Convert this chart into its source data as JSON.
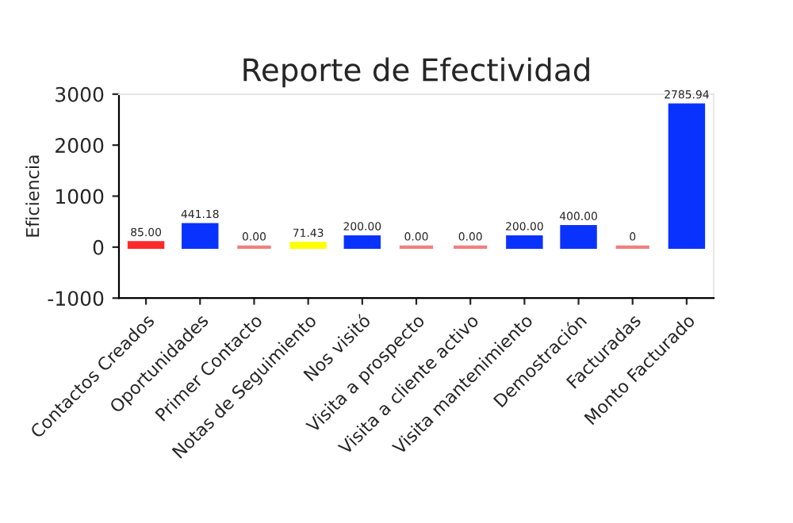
{
  "chart_data": {
    "type": "bar",
    "title": "Reporte de Efectividad",
    "ylabel": "Eficiencia",
    "categories": [
      "Contactos Creados",
      "Oportunidades",
      "Primer Contacto",
      "Notas de Seguimiento",
      "Nos visitó",
      "Visita a prospecto",
      "Visita a cliente activo",
      "Visita mantenimiento",
      "Demostración",
      "Facturadas",
      "Monto Facturado"
    ],
    "values": [
      85,
      441.18,
      0,
      71.43,
      200,
      0,
      0,
      200,
      400,
      0,
      2785.94
    ],
    "colors": [
      "#ff2a2a",
      "#0a32ff",
      "#f08080",
      "#ffff00",
      "#0a32ff",
      "#f08080",
      "#f08080",
      "#0a32ff",
      "#0a32ff",
      "#f08080",
      "#0a32ff"
    ],
    "value_labels": [
      "85.00",
      "441.18",
      "0.00",
      "71.43",
      "200.00",
      "0.00",
      "0.00",
      "200.00",
      "400.00",
      "0",
      "2785.94"
    ],
    "ylim": [
      -1000,
      3000
    ],
    "yticks": [
      -1000,
      0,
      1000,
      2000,
      3000
    ],
    "legend": false
  }
}
